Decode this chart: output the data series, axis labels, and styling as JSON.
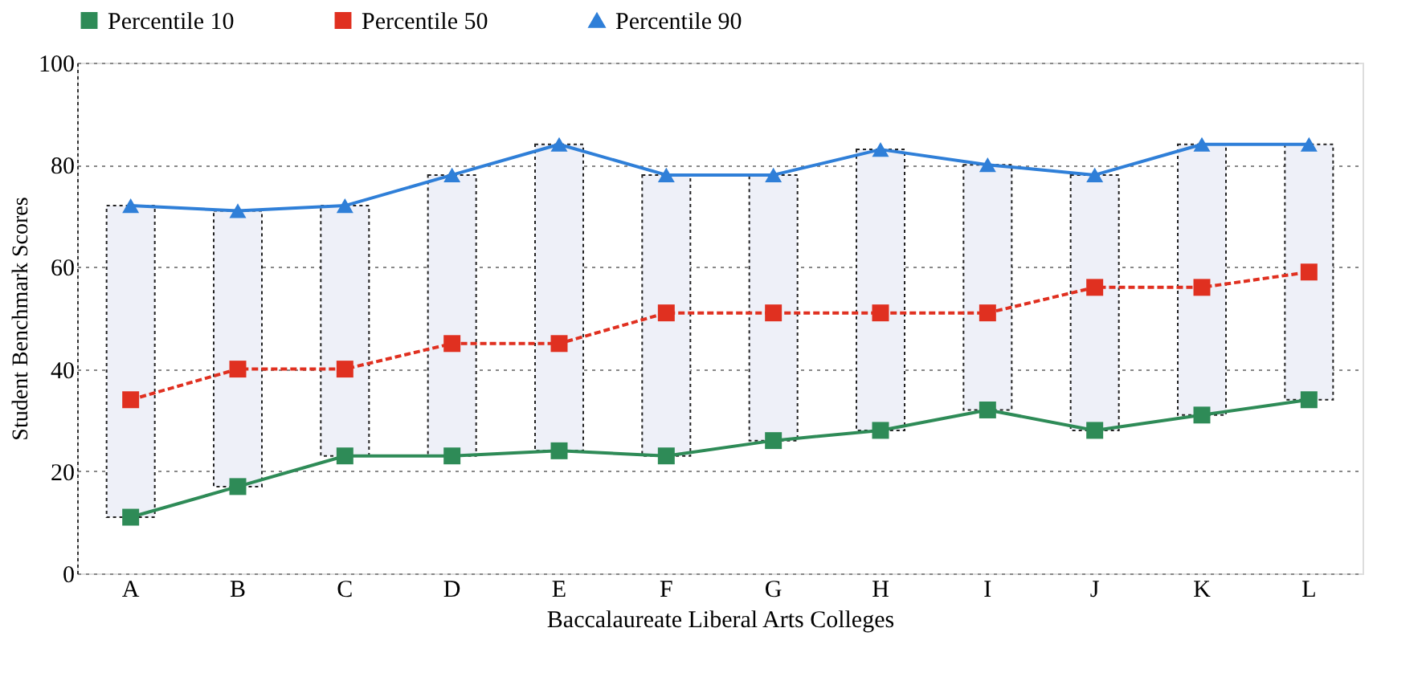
{
  "chart_data": {
    "type": "line",
    "xlabel": "Baccalaureate Liberal Arts Colleges",
    "ylabel": "Student Benchmark Scores",
    "categories": [
      "A",
      "B",
      "C",
      "D",
      "E",
      "F",
      "G",
      "H",
      "I",
      "J",
      "K",
      "L"
    ],
    "series": [
      {
        "type": "bar",
        "color": "#eef0f8",
        "base": [
          11,
          17,
          23,
          23,
          24,
          23,
          26,
          28,
          32,
          28,
          31,
          34
        ],
        "values": [
          61,
          54,
          49,
          55,
          60,
          55,
          52,
          55,
          48,
          50,
          53,
          50
        ]
      },
      {
        "name": "Percentile 10",
        "color": "#2e8b57",
        "marker": "square",
        "values": [
          11,
          17,
          23,
          23,
          24,
          23,
          26,
          28,
          32,
          28,
          31,
          34
        ]
      },
      {
        "name": "Percentile 50",
        "color": "#e03020",
        "marker": "square",
        "line_style": "dashed",
        "values": [
          34,
          40,
          40,
          45,
          45,
          51,
          51,
          51,
          51,
          56,
          56,
          59
        ]
      },
      {
        "name": "Percentile 90",
        "color": "#2f7fd8",
        "marker": "triangle",
        "values": [
          72,
          71,
          72,
          78,
          84,
          78,
          78,
          83,
          80,
          78,
          84,
          84
        ]
      }
    ],
    "ylim": [
      0,
      100
    ],
    "yticks": [
      0,
      20,
      40,
      60,
      80,
      100
    ],
    "grid": "y",
    "legend": "top"
  }
}
